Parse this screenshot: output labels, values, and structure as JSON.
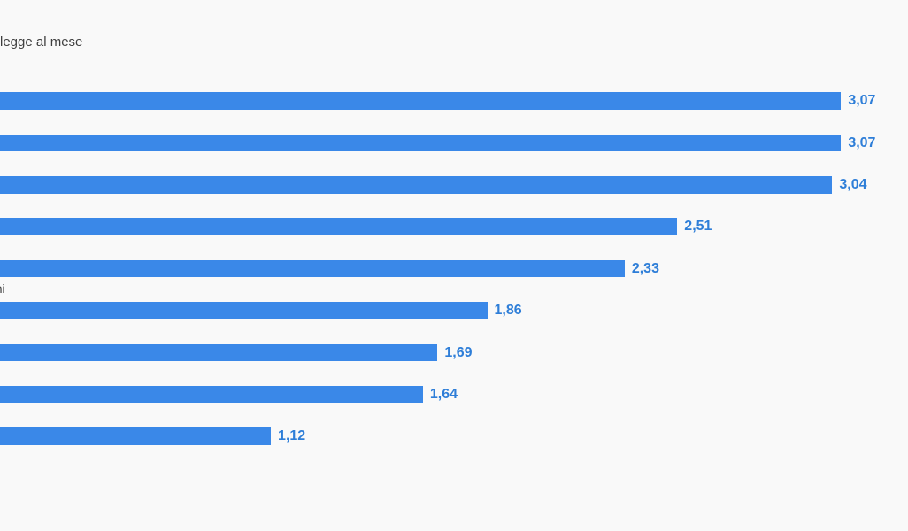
{
  "page": {
    "background_color": "#f9f9f9",
    "note": "left side of original chart is cropped out of frame"
  },
  "header": {
    "subtitle_visible_fragment": "legge al mese"
  },
  "side_label": {
    "visible_fragment": "ni"
  },
  "chart_data": {
    "type": "bar",
    "orientation": "horizontal",
    "title": "",
    "subtitle_visible_fragment": "legge al mese",
    "categories_cropped": true,
    "visible_category_fragment": "ni",
    "values": [
      3.07,
      3.07,
      3.04,
      2.51,
      2.33,
      1.86,
      1.69,
      1.64,
      1.12
    ],
    "value_labels": [
      "3,07",
      "3,07",
      "3,04",
      "2,51",
      "2,33",
      "1,86",
      "1,69",
      "1,64",
      "1,12"
    ],
    "xlabel": "",
    "ylabel": "",
    "xlim": [
      0,
      3.3
    ],
    "grid": false,
    "legend": false,
    "bar_color": "#3a88e8",
    "value_label_color": "#2e7ed8",
    "text_color": "#3f3f3f"
  }
}
